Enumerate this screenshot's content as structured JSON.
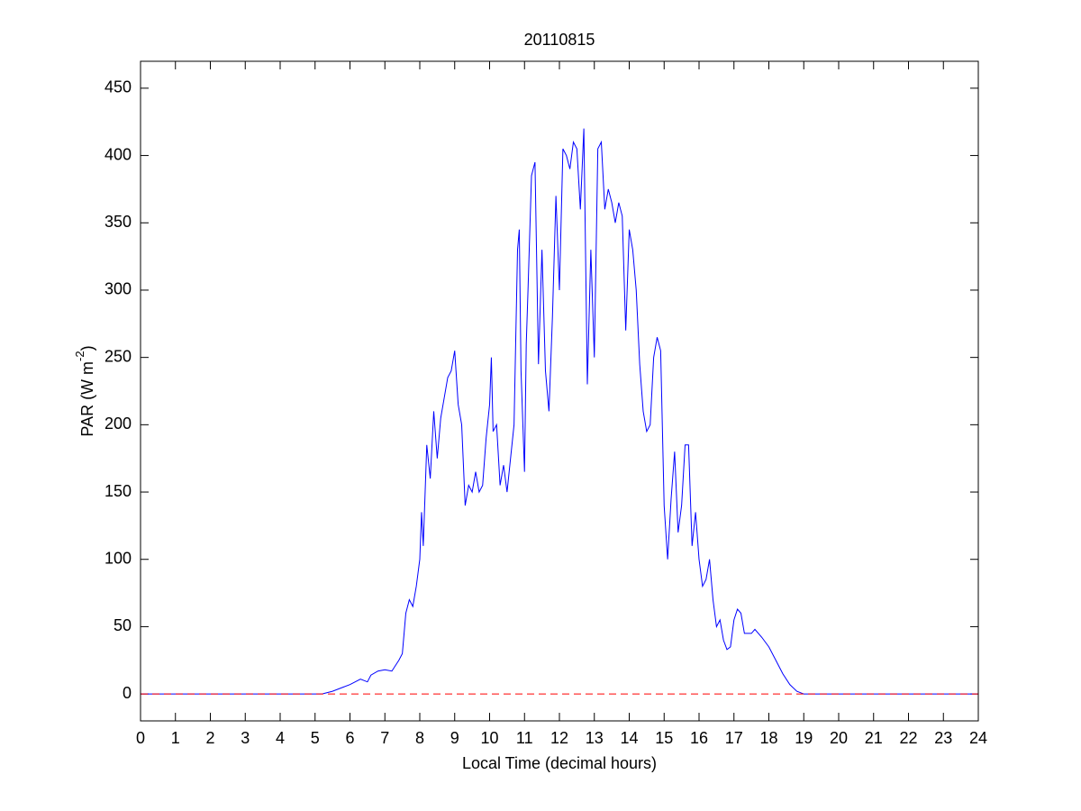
{
  "chart_data": {
    "type": "line",
    "title": "20110815",
    "xlabel": "Local Time (decimal hours)",
    "ylabel": {
      "text": "PAR (W m",
      "sup": "-2",
      "tail": ")"
    },
    "xlim": [
      0,
      24
    ],
    "xticks": [
      0,
      1,
      2,
      3,
      4,
      5,
      6,
      7,
      8,
      9,
      10,
      11,
      12,
      13,
      14,
      15,
      16,
      17,
      18,
      19,
      20,
      21,
      22,
      23,
      24
    ],
    "ylim": [
      -20,
      470
    ],
    "yticks": [
      0,
      50,
      100,
      150,
      200,
      250,
      300,
      350,
      400,
      450
    ],
    "grid": false,
    "series": [
      {
        "color": "#0000ff",
        "dash": false,
        "x": [
          0,
          5.2,
          5.5,
          5.8,
          6.0,
          6.3,
          6.5,
          6.6,
          6.8,
          7.0,
          7.2,
          7.4,
          7.5,
          7.6,
          7.7,
          7.8,
          7.9,
          8.0,
          8.05,
          8.1,
          8.2,
          8.3,
          8.4,
          8.5,
          8.6,
          8.7,
          8.8,
          8.9,
          9.0,
          9.1,
          9.2,
          9.3,
          9.4,
          9.5,
          9.6,
          9.7,
          9.8,
          9.9,
          10.0,
          10.05,
          10.1,
          10.2,
          10.3,
          10.4,
          10.5,
          10.6,
          10.7,
          10.8,
          10.85,
          10.9,
          11.0,
          11.05,
          11.1,
          11.2,
          11.3,
          11.4,
          11.5,
          11.6,
          11.7,
          11.8,
          11.9,
          12.0,
          12.1,
          12.2,
          12.3,
          12.4,
          12.5,
          12.6,
          12.7,
          12.8,
          12.9,
          13.0,
          13.1,
          13.2,
          13.3,
          13.4,
          13.5,
          13.6,
          13.7,
          13.8,
          13.9,
          14.0,
          14.1,
          14.2,
          14.3,
          14.4,
          14.5,
          14.6,
          14.7,
          14.8,
          14.9,
          15.0,
          15.1,
          15.2,
          15.3,
          15.4,
          15.5,
          15.6,
          15.7,
          15.8,
          15.9,
          16.0,
          16.1,
          16.2,
          16.3,
          16.4,
          16.5,
          16.6,
          16.7,
          16.8,
          16.9,
          17.0,
          17.1,
          17.2,
          17.3,
          17.4,
          17.5,
          17.6,
          17.8,
          18.0,
          18.2,
          18.4,
          18.6,
          18.8,
          19.0,
          24
        ],
        "values": [
          0,
          0,
          2,
          5,
          7,
          11,
          9,
          14,
          17,
          18,
          17,
          25,
          30,
          60,
          70,
          65,
          80,
          100,
          135,
          110,
          185,
          160,
          210,
          175,
          205,
          220,
          235,
          240,
          255,
          215,
          200,
          140,
          155,
          150,
          165,
          150,
          155,
          190,
          215,
          250,
          195,
          200,
          155,
          170,
          150,
          175,
          200,
          330,
          345,
          240,
          165,
          260,
          300,
          385,
          395,
          245,
          330,
          240,
          210,
          280,
          370,
          300,
          405,
          400,
          390,
          410,
          405,
          360,
          420,
          230,
          330,
          250,
          405,
          410,
          360,
          375,
          365,
          350,
          365,
          355,
          270,
          345,
          330,
          300,
          245,
          210,
          195,
          200,
          250,
          265,
          255,
          140,
          100,
          145,
          180,
          120,
          140,
          185,
          185,
          110,
          135,
          100,
          80,
          85,
          100,
          70,
          50,
          55,
          40,
          33,
          35,
          55,
          63,
          60,
          45,
          45,
          45,
          48,
          42,
          35,
          25,
          15,
          7,
          2,
          0,
          0
        ]
      },
      {
        "color": "#ff0000",
        "dash": true,
        "x": [
          0,
          24
        ],
        "values": [
          0,
          0
        ]
      }
    ]
  }
}
